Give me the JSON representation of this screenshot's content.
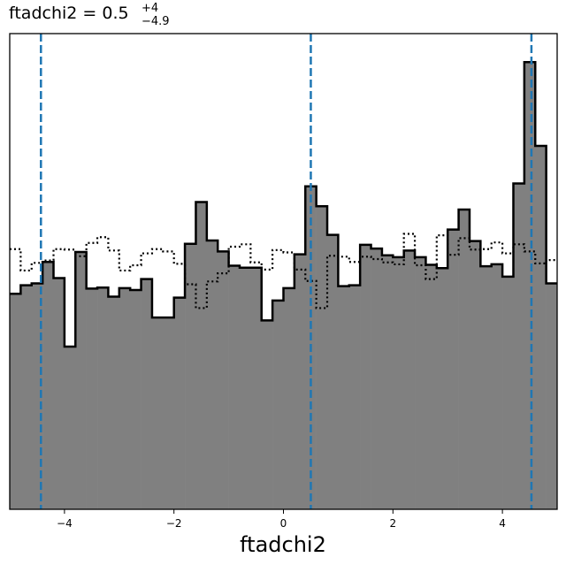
{
  "chart_data": {
    "type": "histogram",
    "title": {
      "prefix": "ftadchi2 = 0.5",
      "upper": "+4",
      "lower": "−4.9"
    },
    "xlabel": "ftadchi2",
    "ylabel": "",
    "xlim": [
      -5,
      5
    ],
    "ylim": [
      0,
      1
    ],
    "yticks_shown": false,
    "grid": false,
    "xticks": [
      {
        "value": -4,
        "label": "−4"
      },
      {
        "value": -2,
        "label": "−2"
      },
      {
        "value": 0,
        "label": "0"
      },
      {
        "value": 2,
        "label": "2"
      },
      {
        "value": 4,
        "label": "4"
      }
    ],
    "bin_start": -5,
    "bin_width": 0.2,
    "series": [
      {
        "style": "filled gray step, black outline",
        "fill": "#808080",
        "edge": "#000000",
        "values": [
          0.453,
          0.471,
          0.475,
          0.52,
          0.486,
          0.342,
          0.541,
          0.464,
          0.466,
          0.447,
          0.465,
          0.461,
          0.484,
          0.403,
          0.403,
          0.445,
          0.558,
          0.646,
          0.565,
          0.542,
          0.512,
          0.508,
          0.508,
          0.397,
          0.439,
          0.465,
          0.536,
          0.679,
          0.637,
          0.577,
          0.469,
          0.471,
          0.556,
          0.548,
          0.534,
          0.53,
          0.544,
          0.53,
          0.514,
          0.507,
          0.588,
          0.63,
          0.564,
          0.511,
          0.515,
          0.489,
          0.685,
          0.94,
          0.764,
          0.475
        ]
      },
      {
        "style": "dotted step, no fill",
        "edge": "#000000",
        "values": [
          0.547,
          0.502,
          0.518,
          0.523,
          0.547,
          0.546,
          0.532,
          0.56,
          0.572,
          0.544,
          0.502,
          0.513,
          0.538,
          0.547,
          0.542,
          0.516,
          0.473,
          0.423,
          0.479,
          0.496,
          0.552,
          0.557,
          0.519,
          0.504,
          0.545,
          0.54,
          0.504,
          0.48,
          0.423,
          0.533,
          0.531,
          0.52,
          0.531,
          0.526,
          0.519,
          0.515,
          0.579,
          0.513,
          0.484,
          0.576,
          0.535,
          0.57,
          0.546,
          0.547,
          0.561,
          0.538,
          0.557,
          0.542,
          0.517,
          0.524
        ]
      }
    ],
    "vlines": {
      "style": "dashed",
      "color": "#1f77b4",
      "x": [
        -4.43,
        0.5,
        4.53
      ]
    }
  }
}
